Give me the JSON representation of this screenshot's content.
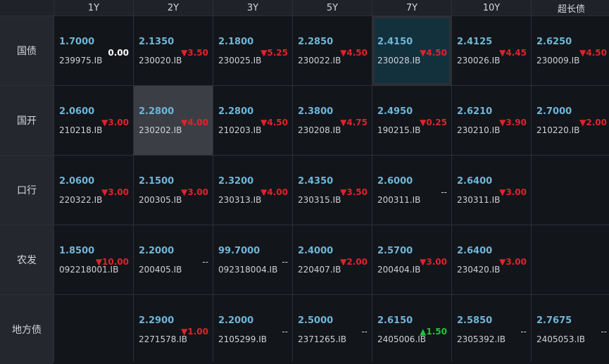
{
  "columns": [
    "1Y",
    "2Y",
    "3Y",
    "5Y",
    "7Y",
    "10Y",
    "超长债"
  ],
  "rows": [
    {
      "label": "国债",
      "cells": [
        {
          "yield": "1.7000",
          "code": "239975.IB",
          "change": "0.00",
          "dir": "flat"
        },
        {
          "yield": "2.1350",
          "code": "230020.IB",
          "change": "▼3.50",
          "dir": "down"
        },
        {
          "yield": "2.1800",
          "code": "230025.IB",
          "change": "▼5.25",
          "dir": "down"
        },
        {
          "yield": "2.2850",
          "code": "230022.IB",
          "change": "▼4.50",
          "dir": "down"
        },
        {
          "yield": "2.4150",
          "code": "230028.IB",
          "change": "▼4.50",
          "dir": "down",
          "hl": "blue"
        },
        {
          "yield": "2.4125",
          "code": "230026.IB",
          "change": "▼4.45",
          "dir": "down"
        },
        {
          "yield": "2.6250",
          "code": "230009.IB",
          "change": "▼4.50",
          "dir": "down"
        }
      ]
    },
    {
      "label": "国开",
      "cells": [
        {
          "yield": "2.0600",
          "code": "210218.IB",
          "change": "▼3.00",
          "dir": "down"
        },
        {
          "yield": "2.2800",
          "code": "230202.IB",
          "change": "▼4.00",
          "dir": "down",
          "hl": "grey"
        },
        {
          "yield": "2.2800",
          "code": "210203.IB",
          "change": "▼4.50",
          "dir": "down"
        },
        {
          "yield": "2.3800",
          "code": "230208.IB",
          "change": "▼4.75",
          "dir": "down"
        },
        {
          "yield": "2.4950",
          "code": "190215.IB",
          "change": "▼0.25",
          "dir": "down"
        },
        {
          "yield": "2.6210",
          "code": "230210.IB",
          "change": "▼3.90",
          "dir": "down"
        },
        {
          "yield": "2.7000",
          "code": "210220.IB",
          "change": "▼2.00",
          "dir": "down"
        }
      ]
    },
    {
      "label": "口行",
      "cells": [
        {
          "yield": "2.0600",
          "code": "220322.IB",
          "change": "▼3.00",
          "dir": "down"
        },
        {
          "yield": "2.1500",
          "code": "200305.IB",
          "change": "▼3.00",
          "dir": "down"
        },
        {
          "yield": "2.3200",
          "code": "230313.IB",
          "change": "▼4.00",
          "dir": "down"
        },
        {
          "yield": "2.4350",
          "code": "230315.IB",
          "change": "▼3.50",
          "dir": "down"
        },
        {
          "yield": "2.6000",
          "code": "200311.IB",
          "change": "--",
          "dir": "nil"
        },
        {
          "yield": "2.6400",
          "code": "230311.IB",
          "change": "▼3.00",
          "dir": "down"
        },
        null
      ]
    },
    {
      "label": "农发",
      "cells": [
        {
          "yield": "1.8500",
          "code": "092218001.IB",
          "change": "▼10.00",
          "dir": "down"
        },
        {
          "yield": "2.2000",
          "code": "200405.IB",
          "change": "--",
          "dir": "nil"
        },
        {
          "yield": "99.7000",
          "code": "092318004.IB",
          "change": "--",
          "dir": "nil"
        },
        {
          "yield": "2.4000",
          "code": "220407.IB",
          "change": "▼2.00",
          "dir": "down"
        },
        {
          "yield": "2.5700",
          "code": "200404.IB",
          "change": "▼3.00",
          "dir": "down"
        },
        {
          "yield": "2.6400",
          "code": "230420.IB",
          "change": "▼3.00",
          "dir": "down"
        },
        null
      ]
    },
    {
      "label": "地方债",
      "cells": [
        null,
        {
          "yield": "2.2900",
          "code": "2271578.IB",
          "change": "▼1.00",
          "dir": "down"
        },
        {
          "yield": "2.2000",
          "code": "2105299.IB",
          "change": "--",
          "dir": "nil"
        },
        {
          "yield": "2.5000",
          "code": "2371265.IB",
          "change": "--",
          "dir": "nil"
        },
        {
          "yield": "2.6150",
          "code": "2405006.IB",
          "change": "▲1.50",
          "dir": "up"
        },
        {
          "yield": "2.5850",
          "code": "2305392.IB",
          "change": "--",
          "dir": "nil"
        },
        {
          "yield": "2.7675",
          "code": "2405053.IB",
          "change": "--",
          "dir": "nil"
        }
      ]
    }
  ],
  "colors": {
    "yield": "#6eb6d8",
    "down": "#e0232b",
    "up": "#1fc43b",
    "highlight_blue": "#13313d",
    "highlight_grey": "#3b3e44"
  }
}
